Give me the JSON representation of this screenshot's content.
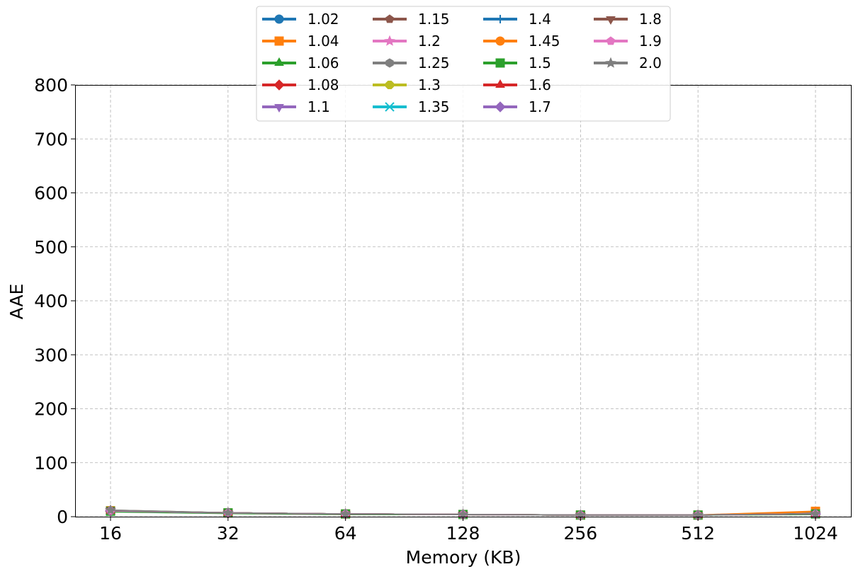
{
  "chart_data": {
    "type": "line",
    "title": "",
    "xlabel": "Memory (KB)",
    "ylabel": "AAE",
    "categories": [
      "16",
      "32",
      "64",
      "128",
      "256",
      "512",
      "1024"
    ],
    "ylim": [
      0,
      800
    ],
    "yticks": [
      0,
      100,
      200,
      300,
      400,
      500,
      600,
      700,
      800
    ],
    "grid": true,
    "legend_position": "top-center",
    "legend_columns": 4,
    "series": [
      {
        "name": "1.02",
        "color": "#1f77b4",
        "marker": "circle",
        "values": [
          10,
          7,
          5,
          4,
          3,
          3,
          6
        ]
      },
      {
        "name": "1.04",
        "color": "#ff7f0e",
        "marker": "square",
        "values": [
          11,
          7,
          5,
          4,
          3,
          3,
          10
        ]
      },
      {
        "name": "1.06",
        "color": "#2ca02c",
        "marker": "triangle-up",
        "values": [
          9,
          6,
          4,
          4,
          3,
          3,
          4
        ]
      },
      {
        "name": "1.08",
        "color": "#d62728",
        "marker": "diamond",
        "values": [
          10,
          7,
          5,
          4,
          3,
          3,
          5
        ]
      },
      {
        "name": "1.1",
        "color": "#9467bd",
        "marker": "triangle-down",
        "values": [
          10,
          7,
          5,
          4,
          3,
          3,
          5
        ]
      },
      {
        "name": "1.15",
        "color": "#8c564b",
        "marker": "pentagon",
        "values": [
          11,
          7,
          5,
          4,
          3,
          3,
          5
        ]
      },
      {
        "name": "1.2",
        "color": "#e377c2",
        "marker": "star",
        "values": [
          10,
          7,
          5,
          4,
          3,
          3,
          5
        ]
      },
      {
        "name": "1.25",
        "color": "#7f7f7f",
        "marker": "hexagon",
        "values": [
          11,
          7,
          5,
          4,
          3,
          3,
          5
        ]
      },
      {
        "name": "1.3",
        "color": "#bcbd22",
        "marker": "octagon",
        "values": [
          10,
          7,
          5,
          4,
          3,
          3,
          5
        ]
      },
      {
        "name": "1.35",
        "color": "#17becf",
        "marker": "x",
        "values": [
          10,
          7,
          5,
          4,
          3,
          3,
          5
        ]
      },
      {
        "name": "1.4",
        "color": "#1f77b4",
        "marker": "plus",
        "values": [
          10,
          7,
          5,
          4,
          3,
          3,
          5
        ]
      },
      {
        "name": "1.45",
        "color": "#ff7f0e",
        "marker": "circle",
        "values": [
          11,
          7,
          5,
          4,
          3,
          3,
          9
        ]
      },
      {
        "name": "1.5",
        "color": "#2ca02c",
        "marker": "square",
        "values": [
          10,
          7,
          5,
          4,
          3,
          3,
          5
        ]
      },
      {
        "name": "1.6",
        "color": "#d62728",
        "marker": "triangle-up",
        "values": [
          11,
          7,
          5,
          4,
          3,
          3,
          5
        ]
      },
      {
        "name": "1.7",
        "color": "#9467bd",
        "marker": "diamond",
        "values": [
          11,
          7,
          5,
          4,
          3,
          3,
          5
        ]
      },
      {
        "name": "1.8",
        "color": "#8c564b",
        "marker": "triangle-down",
        "values": [
          12,
          7,
          5,
          4,
          3,
          3,
          5
        ]
      },
      {
        "name": "1.9",
        "color": "#e377c2",
        "marker": "pentagon",
        "values": [
          11,
          7,
          5,
          4,
          3,
          3,
          5
        ]
      },
      {
        "name": "2.0",
        "color": "#7f7f7f",
        "marker": "star",
        "values": [
          12,
          7,
          5,
          4,
          3,
          3,
          5
        ]
      }
    ]
  }
}
